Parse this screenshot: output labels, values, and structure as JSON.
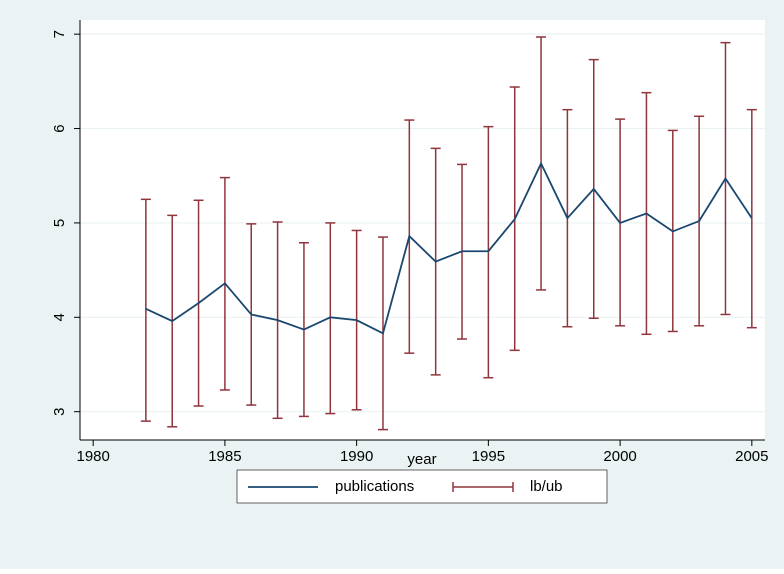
{
  "chart_data": {
    "type": "line-errorbar",
    "x_label": "year",
    "x": [
      1982,
      1983,
      1984,
      1985,
      1986,
      1987,
      1988,
      1989,
      1990,
      1991,
      1992,
      1993,
      1994,
      1995,
      1996,
      1997,
      1998,
      1999,
      2000,
      2001,
      2002,
      2003,
      2004,
      2005
    ],
    "series": [
      {
        "name": "publications",
        "color": "#1a476f",
        "values": [
          4.09,
          3.96,
          4.15,
          4.36,
          4.03,
          3.97,
          3.87,
          4.0,
          3.97,
          3.83,
          4.86,
          4.59,
          4.7,
          4.7,
          5.04,
          5.63,
          5.05,
          5.36,
          5.0,
          5.1,
          4.91,
          5.02,
          5.47,
          5.05
        ]
      },
      {
        "name": "lb/ub",
        "color": "#90353b",
        "lower": [
          2.9,
          2.84,
          3.06,
          3.23,
          3.07,
          2.93,
          2.95,
          2.98,
          3.02,
          2.81,
          3.62,
          3.39,
          3.77,
          3.36,
          3.65,
          4.29,
          3.9,
          3.99,
          3.91,
          3.82,
          3.85,
          3.91,
          4.03,
          3.89
        ],
        "upper": [
          5.25,
          5.08,
          5.24,
          5.48,
          4.99,
          5.01,
          4.79,
          5.0,
          4.92,
          4.85,
          6.09,
          5.79,
          5.62,
          6.02,
          6.44,
          6.97,
          6.2,
          6.73,
          6.1,
          6.38,
          5.98,
          6.13,
          6.91,
          6.2
        ]
      }
    ],
    "xlim": [
      1979.5,
      2005.5
    ],
    "xticks": [
      1980,
      1985,
      1990,
      1995,
      2000,
      2005
    ],
    "ylim": [
      2.7,
      7.15
    ],
    "yticks": [
      3,
      4,
      5,
      6,
      7
    ],
    "grid": true
  }
}
